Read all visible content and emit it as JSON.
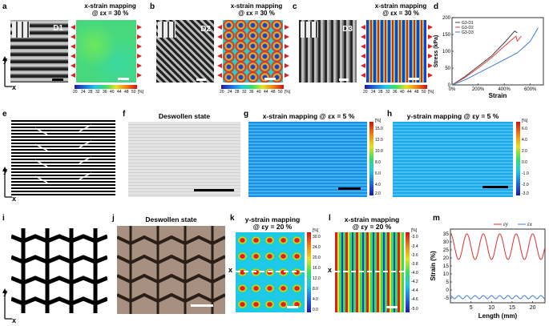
{
  "panels": {
    "a": {
      "letter": "a",
      "title1": "x-strain mapping",
      "title2": "@ εx = 30 %",
      "sample": "D1"
    },
    "b": {
      "letter": "b",
      "title1": "x-strain mapping",
      "title2": "@ εx = 30 %",
      "sample": "D2"
    },
    "c": {
      "letter": "c",
      "title1": "x-strain mapping",
      "title2": "@ εx = 30 %",
      "sample": "D3"
    },
    "d": {
      "letter": "d"
    },
    "e": {
      "letter": "e"
    },
    "f": {
      "letter": "f",
      "title": "Deswollen state"
    },
    "g": {
      "letter": "g",
      "title": "x-strain mapping @ εx = 5 %"
    },
    "h": {
      "letter": "h",
      "title": "y-strain mapping @ εy = 5 %"
    },
    "i": {
      "letter": "i"
    },
    "j": {
      "letter": "j",
      "title": "Deswollen state"
    },
    "k": {
      "letter": "k",
      "title1": "y-strain mapping",
      "title2": "@ εy = 20 %"
    },
    "l": {
      "letter": "l",
      "title1": "x-strain mapping",
      "title2": "@ εy = 20 %"
    },
    "m": {
      "letter": "m"
    }
  },
  "axes_labels": {
    "y": "y",
    "x": "x"
  },
  "colorbar_30": {
    "ticks": [
      "20",
      "24",
      "28",
      "32",
      "36",
      "40",
      "44",
      "48",
      "50"
    ],
    "unit": "[%]"
  },
  "colorbar_g": {
    "unit": "[%]",
    "ticks": [
      "15.0",
      "12.0",
      "10.0",
      "8.0",
      "6.0",
      "4.0",
      "2.0"
    ]
  },
  "colorbar_h": {
    "unit": "[%]",
    "ticks": [
      "6.0",
      "4.0",
      "2.0",
      "0.0",
      "-1.0",
      "-2.0",
      "-3.0"
    ]
  },
  "colorbar_k": {
    "unit": "[%]",
    "ticks": [
      "30.0",
      "24.0",
      "20.0",
      "16.0",
      "12.0",
      "8.0",
      "4.0",
      "0.0"
    ]
  },
  "colorbar_l": {
    "unit": "[%]",
    "ticks": [
      "-3.0",
      "-3.4",
      "-3.6",
      "-3.8",
      "-4.0",
      "-4.2",
      "-4.4",
      "-4.6",
      "-5.0"
    ]
  },
  "chart_data": [
    {
      "type": "line",
      "panel": "d",
      "xlabel": "Strain",
      "ylabel": "Stress (kPa)",
      "xlim": [
        0,
        7
      ],
      "ylim": [
        0,
        200
      ],
      "xticks": [
        "0%",
        "200%",
        "400%",
        "600%"
      ],
      "yticks": [
        "0",
        "50",
        "100",
        "150",
        "200"
      ],
      "legend_position": "top-left",
      "series": [
        {
          "name": "G3-D1",
          "color": "#3c3c3c",
          "x": [
            0,
            1,
            2,
            3,
            4,
            4.8,
            5.0
          ],
          "y": [
            0,
            25,
            55,
            85,
            125,
            160,
            155
          ]
        },
        {
          "name": "G3-D2",
          "color": "#e04040",
          "x": [
            0,
            1,
            2,
            3,
            4,
            4.9,
            5.0,
            5.3
          ],
          "y": [
            0,
            22,
            50,
            80,
            115,
            145,
            130,
            145
          ]
        },
        {
          "name": "G3-D3",
          "color": "#3a7fd5",
          "x": [
            0,
            1,
            2,
            3,
            4,
            5,
            6,
            6.6
          ],
          "y": [
            0,
            15,
            35,
            55,
            75,
            95,
            130,
            170
          ]
        }
      ]
    },
    {
      "type": "line",
      "panel": "m",
      "xlabel": "Length (mm)",
      "ylabel": "Strain (%)",
      "xlim": [
        0,
        23
      ],
      "ylim": [
        -8,
        38
      ],
      "xticks": [
        "5",
        "10",
        "15",
        "20"
      ],
      "yticks": [
        "35",
        "30",
        "25",
        "20",
        "15",
        "10",
        "5",
        "0",
        "-5"
      ],
      "legend_position": "top-right",
      "series": [
        {
          "name": "εy",
          "color": "#e03030",
          "period": 4.0,
          "min": 19,
          "max": 35
        },
        {
          "name": "εx",
          "color": "#3a7fd5",
          "period": 2.0,
          "min": -5.5,
          "max": -3.5
        }
      ]
    }
  ]
}
